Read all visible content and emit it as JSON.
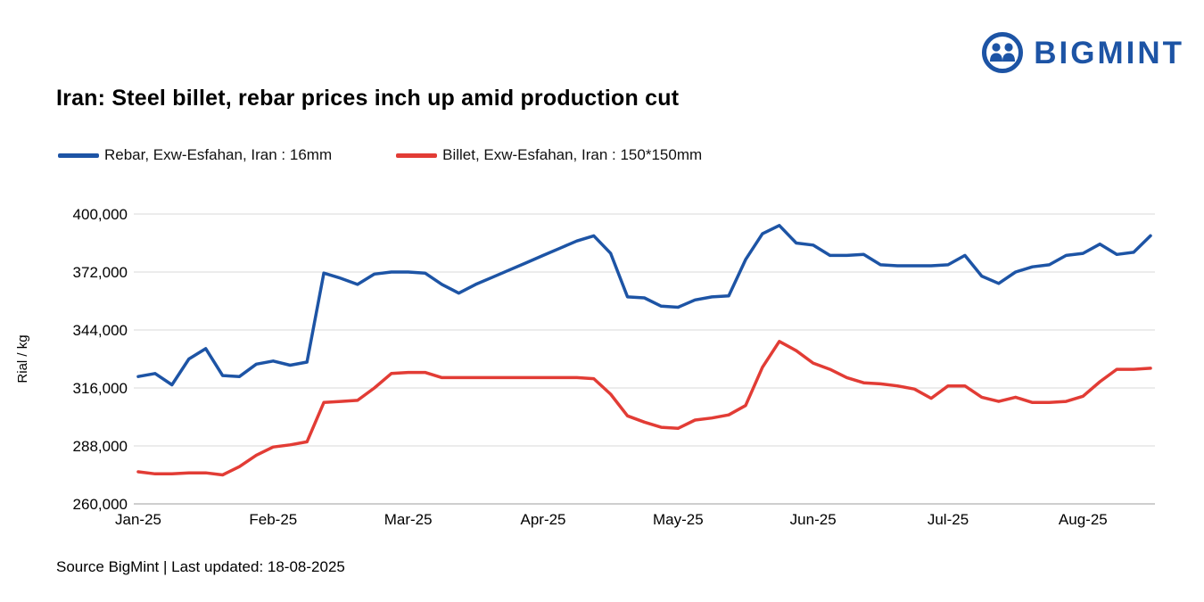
{
  "logo": {
    "text": "BIGMINT",
    "color": "#1d54a5"
  },
  "title": "Iran: Steel billet, rebar prices inch up amid production cut",
  "legend": [
    {
      "label": "Rebar, Exw-Esfahan, Iran : 16mm",
      "color": "#1d54a5"
    },
    {
      "label": "Billet, Exw-Esfahan, Iran : 150*150mm",
      "color": "#e23c35"
    }
  ],
  "footer": "Source BigMint | Last updated: 18-08-2025",
  "chart_data": {
    "type": "line",
    "title": "Iran: Steel billet, rebar prices inch up amid production cut",
    "xlabel": "",
    "ylabel": "Rial / kg",
    "ylim": [
      260000,
      400000
    ],
    "y_ticks": [
      260000,
      288000,
      316000,
      344000,
      372000,
      400000
    ],
    "x_tick_labels": [
      "Jan-25",
      "Feb-25",
      "Mar-25",
      "Apr-25",
      "May-25",
      "Jun-25",
      "Jul-25",
      "Aug-25"
    ],
    "x_tick_positions": [
      0,
      8,
      16,
      24,
      32,
      40,
      48,
      56
    ],
    "grid": "horizontal",
    "legend_position": "top-left",
    "series": [
      {
        "name": "Rebar, Exw-Esfahan, Iran : 16mm",
        "color": "#1d54a5",
        "values": [
          321500,
          323000,
          317500,
          330000,
          335000,
          322000,
          321500,
          327500,
          329000,
          327000,
          328500,
          371500,
          369000,
          366000,
          371000,
          372000,
          372000,
          371500,
          366000,
          361800,
          366000,
          369500,
          373000,
          376500,
          380000,
          383500,
          387000,
          389500,
          381000,
          360000,
          359500,
          355500,
          355000,
          358500,
          360000,
          360500,
          378000,
          390500,
          394500,
          386000,
          385000,
          380000,
          380000,
          380500,
          375500,
          375000,
          375000,
          375000,
          375500,
          380000,
          370000,
          366500,
          372000,
          374500,
          375500,
          380000,
          381000,
          385500,
          380500,
          381500,
          389500
        ]
      },
      {
        "name": "Billet, Exw-Esfahan, Iran : 150*150mm",
        "color": "#e23c35",
        "values": [
          275500,
          274500,
          274500,
          275000,
          275000,
          274000,
          278000,
          283500,
          287500,
          288500,
          290000,
          309000,
          309500,
          310000,
          316000,
          323000,
          323500,
          323500,
          321000,
          321000,
          321000,
          321000,
          321000,
          321000,
          321000,
          321000,
          321000,
          320500,
          313000,
          302500,
          299500,
          297000,
          296500,
          300500,
          301500,
          303000,
          307500,
          326000,
          338500,
          334000,
          328000,
          325000,
          321000,
          318500,
          318000,
          317000,
          315500,
          311000,
          317000,
          317000,
          311500,
          309500,
          311500,
          309000,
          309000,
          309500,
          312000,
          319000,
          325000,
          325000,
          325500
        ]
      }
    ]
  }
}
